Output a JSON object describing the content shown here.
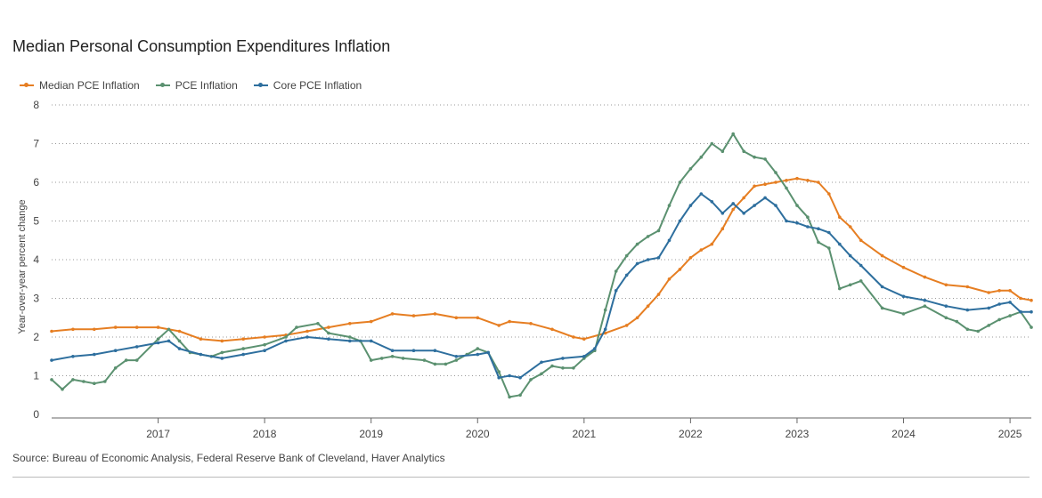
{
  "chart_data": {
    "type": "line",
    "title": "Median Personal Consumption Expenditures Inflation",
    "ylabel": "Year-over-year percent change",
    "xlabel": "",
    "ylim": [
      0,
      8
    ],
    "xlim": [
      2016.0,
      2025.2
    ],
    "yticks": [
      0,
      1,
      2,
      3,
      4,
      5,
      6,
      7,
      8
    ],
    "xticks": [
      "2017",
      "2018",
      "2019",
      "2020",
      "2021",
      "2022",
      "2023",
      "2024",
      "2025"
    ],
    "grid": "horizontal-dotted",
    "legend_position": "top-left",
    "series": [
      {
        "name": "Median PCE Inflation",
        "color": "#E67E22",
        "x": [
          2016.0,
          2016.2,
          2016.4,
          2016.6,
          2016.8,
          2017.0,
          2017.2,
          2017.4,
          2017.6,
          2017.8,
          2018.0,
          2018.2,
          2018.4,
          2018.6,
          2018.8,
          2019.0,
          2019.2,
          2019.4,
          2019.6,
          2019.8,
          2020.0,
          2020.2,
          2020.3,
          2020.5,
          2020.7,
          2020.9,
          2021.0,
          2021.2,
          2021.4,
          2021.5,
          2021.6,
          2021.7,
          2021.8,
          2021.9,
          2022.0,
          2022.1,
          2022.2,
          2022.3,
          2022.4,
          2022.5,
          2022.6,
          2022.7,
          2022.8,
          2022.9,
          2023.0,
          2023.1,
          2023.2,
          2023.3,
          2023.4,
          2023.5,
          2023.6,
          2023.8,
          2024.0,
          2024.2,
          2024.4,
          2024.6,
          2024.8,
          2024.9,
          2025.0,
          2025.1,
          2025.2
        ],
        "values": [
          2.15,
          2.2,
          2.2,
          2.25,
          2.25,
          2.25,
          2.15,
          1.95,
          1.9,
          1.95,
          2.0,
          2.05,
          2.15,
          2.25,
          2.35,
          2.4,
          2.6,
          2.55,
          2.6,
          2.5,
          2.5,
          2.3,
          2.4,
          2.35,
          2.2,
          2.0,
          1.95,
          2.1,
          2.3,
          2.5,
          2.8,
          3.1,
          3.5,
          3.75,
          4.05,
          4.25,
          4.4,
          4.8,
          5.3,
          5.6,
          5.9,
          5.95,
          6.0,
          6.05,
          6.1,
          6.05,
          6.0,
          5.7,
          5.1,
          4.85,
          4.5,
          4.1,
          3.8,
          3.55,
          3.35,
          3.3,
          3.15,
          3.2,
          3.2,
          3.0,
          2.95
        ]
      },
      {
        "name": "PCE Inflation",
        "color": "#5B9170",
        "x": [
          2016.0,
          2016.1,
          2016.2,
          2016.3,
          2016.4,
          2016.5,
          2016.6,
          2016.7,
          2016.8,
          2017.0,
          2017.1,
          2017.2,
          2017.3,
          2017.5,
          2017.6,
          2017.8,
          2018.0,
          2018.2,
          2018.3,
          2018.5,
          2018.6,
          2018.8,
          2018.9,
          2019.0,
          2019.1,
          2019.2,
          2019.3,
          2019.5,
          2019.6,
          2019.7,
          2019.8,
          2019.9,
          2020.0,
          2020.1,
          2020.2,
          2020.3,
          2020.4,
          2020.5,
          2020.6,
          2020.7,
          2020.8,
          2020.9,
          2021.0,
          2021.1,
          2021.2,
          2021.3,
          2021.4,
          2021.5,
          2021.6,
          2021.7,
          2021.8,
          2021.9,
          2022.0,
          2022.1,
          2022.2,
          2022.3,
          2022.4,
          2022.5,
          2022.6,
          2022.7,
          2022.8,
          2022.9,
          2023.0,
          2023.1,
          2023.2,
          2023.3,
          2023.4,
          2023.5,
          2023.6,
          2023.8,
          2024.0,
          2024.2,
          2024.4,
          2024.5,
          2024.6,
          2024.7,
          2024.8,
          2024.9,
          2025.0,
          2025.1,
          2025.2
        ],
        "values": [
          0.9,
          0.65,
          0.9,
          0.85,
          0.8,
          0.85,
          1.2,
          1.4,
          1.4,
          1.95,
          2.2,
          1.9,
          1.6,
          1.5,
          1.6,
          1.7,
          1.8,
          2.0,
          2.25,
          2.35,
          2.1,
          2.0,
          1.9,
          1.4,
          1.45,
          1.5,
          1.45,
          1.4,
          1.3,
          1.3,
          1.4,
          1.55,
          1.7,
          1.6,
          1.1,
          0.45,
          0.5,
          0.9,
          1.05,
          1.25,
          1.2,
          1.2,
          1.45,
          1.65,
          2.7,
          3.7,
          4.1,
          4.4,
          4.6,
          4.75,
          5.4,
          6.0,
          6.35,
          6.65,
          7.0,
          6.8,
          7.25,
          6.8,
          6.65,
          6.6,
          6.25,
          5.85,
          5.4,
          5.1,
          4.45,
          4.3,
          3.25,
          3.35,
          3.45,
          2.75,
          2.6,
          2.8,
          2.5,
          2.4,
          2.2,
          2.15,
          2.3,
          2.45,
          2.55,
          2.65,
          2.25
        ]
      },
      {
        "name": "Core PCE Inflation",
        "color": "#2E6F9E",
        "x": [
          2016.0,
          2016.2,
          2016.4,
          2016.6,
          2016.8,
          2017.0,
          2017.1,
          2017.2,
          2017.4,
          2017.6,
          2017.8,
          2018.0,
          2018.2,
          2018.4,
          2018.6,
          2018.8,
          2019.0,
          2019.2,
          2019.4,
          2019.6,
          2019.8,
          2020.0,
          2020.1,
          2020.2,
          2020.3,
          2020.4,
          2020.6,
          2020.8,
          2021.0,
          2021.1,
          2021.2,
          2021.3,
          2021.4,
          2021.5,
          2021.6,
          2021.7,
          2021.8,
          2021.9,
          2022.0,
          2022.1,
          2022.2,
          2022.3,
          2022.4,
          2022.5,
          2022.6,
          2022.7,
          2022.8,
          2022.9,
          2023.0,
          2023.1,
          2023.2,
          2023.3,
          2023.4,
          2023.5,
          2023.6,
          2023.8,
          2024.0,
          2024.2,
          2024.4,
          2024.6,
          2024.8,
          2024.9,
          2025.0,
          2025.1,
          2025.2
        ],
        "values": [
          1.4,
          1.5,
          1.55,
          1.65,
          1.75,
          1.85,
          1.9,
          1.7,
          1.55,
          1.45,
          1.55,
          1.65,
          1.9,
          2.0,
          1.95,
          1.9,
          1.9,
          1.65,
          1.65,
          1.65,
          1.5,
          1.55,
          1.6,
          0.95,
          1.0,
          0.95,
          1.35,
          1.45,
          1.5,
          1.7,
          2.2,
          3.2,
          3.6,
          3.9,
          4.0,
          4.05,
          4.5,
          5.0,
          5.4,
          5.7,
          5.5,
          5.2,
          5.45,
          5.2,
          5.4,
          5.6,
          5.4,
          5.0,
          4.95,
          4.85,
          4.8,
          4.7,
          4.4,
          4.1,
          3.85,
          3.3,
          3.05,
          2.95,
          2.8,
          2.7,
          2.75,
          2.85,
          2.9,
          2.65,
          2.65
        ]
      }
    ]
  },
  "source": "Source: Bureau of Economic Analysis, Federal Reserve Bank of Cleveland, Haver Analytics"
}
